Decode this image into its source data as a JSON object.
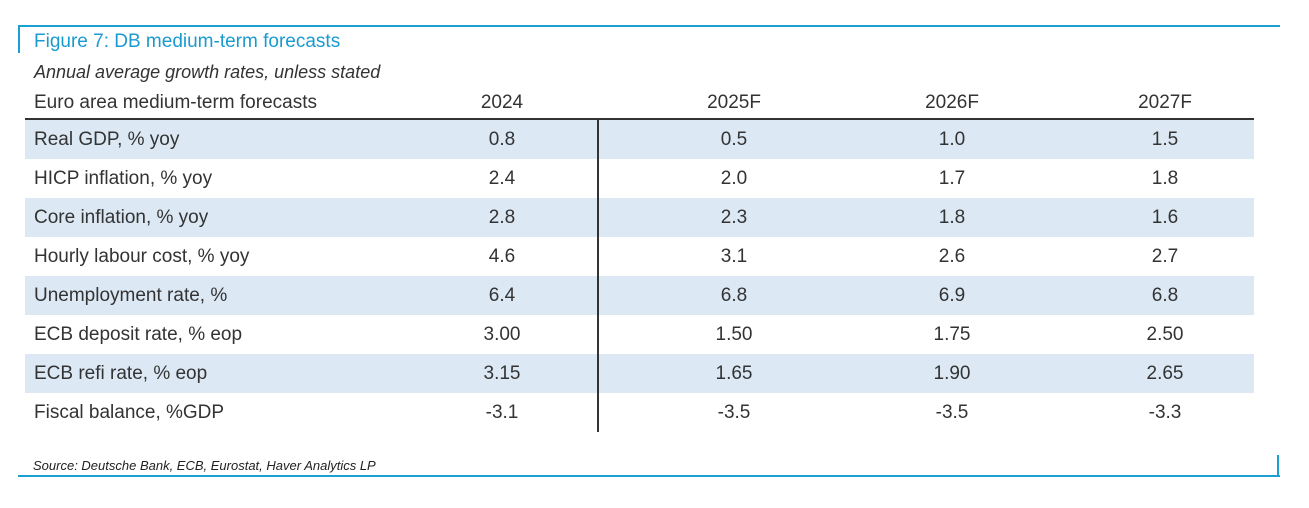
{
  "figure": {
    "title": "Figure 7: DB medium-term forecasts",
    "subtitle": "Annual average growth rates, unless stated",
    "source": "Source: Deutsche Bank, ECB, Eurostat, Haver Analytics LP",
    "accent_color": "#1aa0d2",
    "row_shade_color": "#dce9f5"
  },
  "table": {
    "header": {
      "label": "Euro area medium-term forecasts",
      "columns": [
        "2024",
        "2025F",
        "2026F",
        "2027F"
      ]
    },
    "rows": [
      {
        "label": "Real GDP, % yoy",
        "values": [
          "0.8",
          "0.5",
          "1.0",
          "1.5"
        ]
      },
      {
        "label": "HICP inflation, % yoy",
        "values": [
          "2.4",
          "2.0",
          "1.7",
          "1.8"
        ]
      },
      {
        "label": "Core inflation, % yoy",
        "values": [
          "2.8",
          "2.3",
          "1.8",
          "1.6"
        ]
      },
      {
        "label": "Hourly labour cost, % yoy",
        "values": [
          "4.6",
          "3.1",
          "2.6",
          "2.7"
        ]
      },
      {
        "label": "Unemployment rate, %",
        "values": [
          "6.4",
          "6.8",
          "6.9",
          "6.8"
        ]
      },
      {
        "label": "ECB deposit rate, % eop",
        "values": [
          "3.00",
          "1.50",
          "1.75",
          "2.50"
        ]
      },
      {
        "label": "ECB refi rate, % eop",
        "values": [
          "3.15",
          "1.65",
          "1.90",
          "2.65"
        ]
      },
      {
        "label": "Fiscal balance, %GDP",
        "values": [
          "-3.1",
          "-3.5",
          "-3.5",
          "-3.3"
        ]
      }
    ]
  }
}
